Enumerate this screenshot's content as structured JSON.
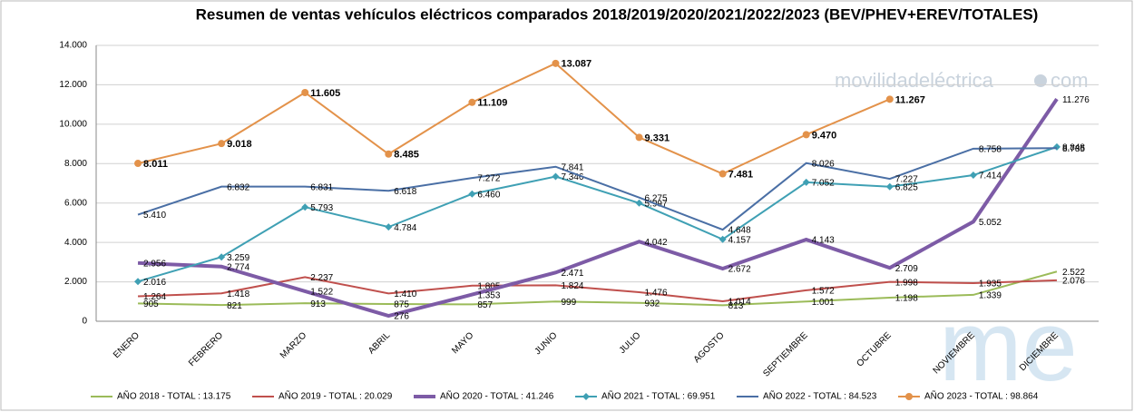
{
  "chart_data": {
    "type": "line",
    "title": "Resumen de ventas vehículos eléctricos comparados 2018/2019/2020/2021/2022/2023  (BEV/PHEV+EREV/TOTALES)",
    "watermark": "movilidadeléctrica",
    "watermark_suffix": "com",
    "logo": "me",
    "categories": [
      "ENERO",
      "FEBRERO",
      "MARZO",
      "ABRIL",
      "MAYO",
      "JUNIO",
      "JULIO",
      "AGOSTO",
      "SEPTIEMBRE",
      "OCTUBRE",
      "NOVIEMBRE",
      "DICIEMBRE"
    ],
    "ylim": [
      0,
      14000
    ],
    "yticks": [
      0,
      {
        "value": 2000,
        "label": "2.000"
      },
      {
        "value": 4000,
        "label": "4.000"
      },
      {
        "value": 6000,
        "label": "6.000"
      },
      {
        "value": 8000,
        "label": "8.000"
      },
      {
        "value": 10000,
        "label": "10.000"
      },
      {
        "value": 12000,
        "label": "12.000"
      },
      {
        "value": 14000,
        "label": "14.000"
      }
    ],
    "grid": true,
    "legend": "bottom",
    "series": [
      {
        "name": "AÑO 2018 - TOTAL : 13.175",
        "color": "#9bbb59",
        "width": 2,
        "marker": "none",
        "values": [
          905,
          821,
          913,
          875,
          857,
          999,
          932,
          813,
          1001,
          1198,
          1339,
          2522
        ],
        "value_labels": [
          "905",
          "821",
          "913",
          "875",
          "857",
          "999",
          "932",
          "813",
          "1.001",
          "1.198",
          "1.339",
          "2.522"
        ]
      },
      {
        "name": "AÑO 2019 - TOTAL : 20.029",
        "color": "#c0504d",
        "width": 2,
        "marker": "none",
        "values": [
          1264,
          1418,
          2237,
          1410,
          1805,
          1824,
          1476,
          1014,
          1572,
          1998,
          1935,
          2076
        ],
        "value_labels": [
          "1.264",
          "1.418",
          "2.237",
          "1.410",
          "1.805",
          "1.824",
          "1.476",
          "1.014",
          "1.572",
          "1.998",
          "1.935",
          "2.076"
        ]
      },
      {
        "name": "AÑO 2020 - TOTAL : 41.246",
        "color": "#7d5ba6",
        "width": 4,
        "marker": "none",
        "values": [
          2956,
          2774,
          1522,
          276,
          1353,
          2471,
          4042,
          2672,
          4143,
          2709,
          5052,
          11276
        ],
        "value_labels": [
          "2.956",
          "2.774",
          "1.522",
          "276",
          "1.353",
          "2.471",
          "4.042",
          "2.672",
          "4.143",
          "2.709",
          "5.052",
          "11.276"
        ]
      },
      {
        "name": "AÑO 2021 - TOTAL : 69.951",
        "color": "#3fa0b4",
        "width": 2,
        "marker": "diamond",
        "values": [
          2016,
          3259,
          5793,
          4784,
          6460,
          7346,
          5997,
          4157,
          7052,
          6825,
          7414,
          8848
        ],
        "value_labels": [
          "2.016",
          "3.259",
          "5.793",
          "4.784",
          "6.460",
          "7.346",
          "5.997",
          "4.157",
          "7.052",
          "6.825",
          "7.414",
          "8.848"
        ]
      },
      {
        "name": "AÑO 2022 - TOTAL : 84.523",
        "color": "#4a6fa5",
        "width": 2,
        "marker": "none",
        "values": [
          5410,
          6832,
          6831,
          6618,
          7272,
          7841,
          6275,
          4648,
          8026,
          7227,
          8758,
          8785
        ],
        "value_labels": [
          "5.410",
          "6.832",
          "6.831",
          "6.618",
          "7.272",
          "7.841",
          "6.275",
          "4.648",
          "8.026",
          "7.227",
          "8.758",
          "8.785"
        ]
      },
      {
        "name": "AÑO 2023 - TOTAL : 98.864",
        "color": "#e3924a",
        "width": 2,
        "marker": "circle",
        "bold_labels": true,
        "values": [
          8011,
          9018,
          11605,
          8485,
          11109,
          13087,
          9331,
          7481,
          9470,
          11267,
          null,
          null
        ],
        "value_labels": [
          "8.011",
          "9.018",
          "11.605",
          "8.485",
          "11.109",
          "13.087",
          "9.331",
          "7.481",
          "9.470",
          "11.267",
          null,
          null
        ]
      }
    ]
  }
}
